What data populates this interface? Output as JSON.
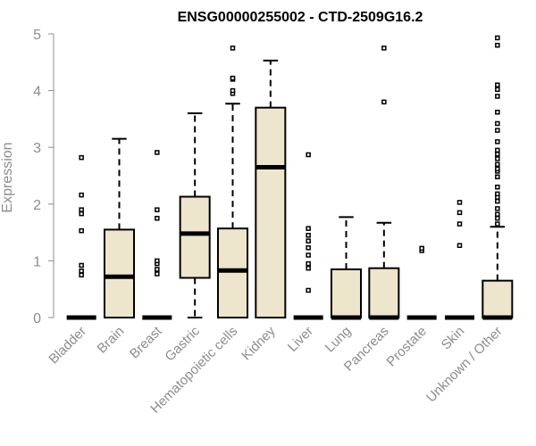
{
  "colors": {
    "box_fill": "#ede6cc",
    "box_stroke": "#000000",
    "axis": "#8c8c8c",
    "text": "#8c8c8c",
    "title": "#000000"
  },
  "chart_data": {
    "type": "boxplot",
    "title": "ENSG00000255002 - CTD-2509G16.2",
    "xlabel": "",
    "ylabel": "Expression",
    "ylim": [
      0,
      5
    ],
    "yticks": [
      "0",
      "1",
      "2",
      "3",
      "4",
      "5"
    ],
    "grid": false,
    "categories": [
      "Bladder",
      "Brain",
      "Breast",
      "Gastric",
      "Hematopoietic cells",
      "Kidney",
      "Liver",
      "Lung",
      "Pancreas",
      "Prostate",
      "Skin",
      "Unknown / Other"
    ],
    "boxes": [
      {
        "category": "Bladder",
        "min": 0,
        "q1": 0,
        "median": 0,
        "q3": 0,
        "max": 0,
        "outliers": [
          0.75,
          0.82,
          0.92,
          1.53,
          1.83,
          1.9,
          2.16,
          2.82
        ]
      },
      {
        "category": "Brain",
        "min": 0,
        "q1": 0,
        "median": 0.72,
        "q3": 1.55,
        "max": 3.15,
        "outliers": []
      },
      {
        "category": "Breast",
        "min": 0,
        "q1": 0,
        "median": 0,
        "q3": 0,
        "max": 0,
        "outliers": [
          0.77,
          0.85,
          0.95,
          1.0,
          1.75,
          1.9,
          2.91
        ]
      },
      {
        "category": "Gastric",
        "min": 0,
        "q1": 0.7,
        "median": 1.48,
        "q3": 2.13,
        "max": 3.6,
        "outliers": []
      },
      {
        "category": "Hematopoietic cells",
        "min": 0,
        "q1": 0,
        "median": 0.83,
        "q3": 1.57,
        "max": 3.77,
        "outliers": [
          3.95,
          4.0,
          4.2,
          4.22,
          4.75
        ]
      },
      {
        "category": "Kidney",
        "min": 0,
        "q1": 0,
        "median": 2.65,
        "q3": 3.7,
        "max": 4.53,
        "outliers": []
      },
      {
        "category": "Liver",
        "min": 0,
        "q1": 0,
        "median": 0,
        "q3": 0,
        "max": 0,
        "outliers": [
          0.48,
          0.87,
          0.95,
          1.1,
          1.23,
          1.35,
          1.45,
          1.57,
          2.87
        ]
      },
      {
        "category": "Lung",
        "min": 0,
        "q1": 0,
        "median": 0,
        "q3": 0.85,
        "max": 1.77,
        "outliers": []
      },
      {
        "category": "Pancreas",
        "min": 0,
        "q1": 0,
        "median": 0,
        "q3": 0.87,
        "max": 1.67,
        "outliers": [
          3.8,
          4.75
        ]
      },
      {
        "category": "Prostate",
        "min": 0,
        "q1": 0,
        "median": 0,
        "q3": 0,
        "max": 0,
        "outliers": [
          1.18,
          1.22
        ]
      },
      {
        "category": "Skin",
        "min": 0,
        "q1": 0,
        "median": 0,
        "q3": 0,
        "max": 0,
        "outliers": [
          1.27,
          1.65,
          1.85,
          2.03
        ]
      },
      {
        "category": "Unknown / Other",
        "min": 0,
        "q1": 0,
        "median": 0,
        "q3": 0.65,
        "max": 1.6,
        "outliers": [
          1.65,
          1.75,
          1.82,
          1.92,
          2.05,
          2.12,
          2.18,
          2.3,
          2.48,
          2.58,
          2.62,
          2.7,
          2.8,
          2.88,
          2.95,
          3.1,
          3.3,
          3.42,
          3.62,
          3.9,
          4.02,
          4.1,
          4.8,
          4.93
        ]
      }
    ]
  }
}
